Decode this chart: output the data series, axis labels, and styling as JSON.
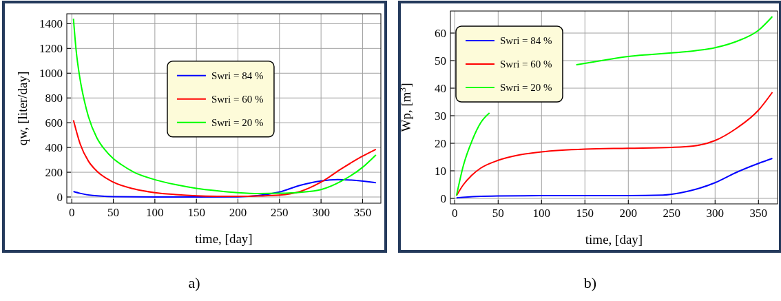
{
  "chart_data": [
    {
      "type": "line",
      "xlabel": "time, [day]",
      "ylabel": "qw, [liter/day]",
      "xlim": [
        -6,
        372
      ],
      "ylim": [
        -50,
        1480
      ],
      "xticks": [
        0,
        50,
        100,
        150,
        200,
        250,
        300,
        350
      ],
      "yticks": [
        0,
        200,
        400,
        600,
        800,
        1000,
        1200,
        1400
      ],
      "grid": true,
      "legend": "center",
      "annotations": [
        "a)"
      ],
      "series": [
        {
          "name": "Swri = 84 %",
          "color": "#0000ff",
          "x": [
            2,
            10,
            25,
            50,
            100,
            150,
            200,
            250,
            275,
            300,
            320,
            340,
            366
          ],
          "values": [
            45,
            30,
            12,
            3,
            0,
            0,
            2,
            40,
            95,
            130,
            140,
            135,
            115
          ]
        },
        {
          "name": "Swri = 60 %",
          "color": "#ff0000",
          "x": [
            2,
            10,
            20,
            30,
            50,
            75,
            100,
            125,
            150,
            175,
            200,
            225,
            250,
            275,
            300,
            325,
            350,
            366
          ],
          "values": [
            620,
            430,
            290,
            210,
            120,
            65,
            35,
            20,
            10,
            6,
            5,
            8,
            15,
            45,
            120,
            230,
            330,
            385
          ]
        },
        {
          "name": "Swri = 20 %",
          "color": "#00ff00",
          "x": [
            2,
            5,
            10,
            15,
            20,
            30,
            40,
            50,
            60,
            75,
            100,
            125,
            150,
            175,
            200,
            225,
            250,
            275,
            300,
            325,
            350,
            366
          ],
          "values": [
            1440,
            1200,
            950,
            780,
            650,
            480,
            380,
            310,
            260,
            200,
            140,
            100,
            70,
            50,
            35,
            28,
            30,
            38,
            60,
            130,
            240,
            340
          ]
        }
      ]
    },
    {
      "type": "line",
      "xlabel": "time, [day]",
      "ylabel": "Wp, [m$^{3}$]",
      "xlim": [
        -5,
        372
      ],
      "ylim": [
        -2,
        68
      ],
      "xticks": [
        0,
        50,
        100,
        150,
        200,
        250,
        300,
        350
      ],
      "yticks": [
        0,
        10,
        20,
        30,
        40,
        50,
        60
      ],
      "grid": true,
      "legend": "top left",
      "annotations": [
        "b)"
      ],
      "series": [
        {
          "name": "Swri = 84 %",
          "color": "#0000ff",
          "x": [
            2,
            25,
            50,
            100,
            200,
            240,
            260,
            280,
            300,
            325,
            350,
            366
          ],
          "values": [
            0.2,
            0.7,
            0.9,
            1,
            1,
            1.2,
            2,
            3.5,
            5.7,
            9.5,
            12.7,
            14.5
          ]
        },
        {
          "name": "Swri = 60 %",
          "color": "#ff0000",
          "x": [
            2,
            10,
            20,
            30,
            50,
            75,
            100,
            150,
            200,
            250,
            275,
            300,
            325,
            350,
            366
          ],
          "values": [
            1,
            5,
            8.5,
            11,
            13.8,
            15.8,
            16.9,
            17.9,
            18.2,
            18.5,
            19,
            21,
            25.5,
            32,
            38.5
          ]
        },
        {
          "name": "Swri = 20 %",
          "color": "#00ff00",
          "x": [
            2,
            10,
            20,
            30,
            40,
            50,
            100,
            140,
            150,
            175,
            200,
            225,
            250,
            275,
            300,
            325,
            350,
            366
          ],
          "values": [
            1,
            12,
            21,
            27.5,
            31,
            null,
            null,
            48.5,
            49,
            50.3,
            51.5,
            52.2,
            52.8,
            53.5,
            54.7,
            57,
            61,
            66
          ]
        }
      ]
    }
  ]
}
